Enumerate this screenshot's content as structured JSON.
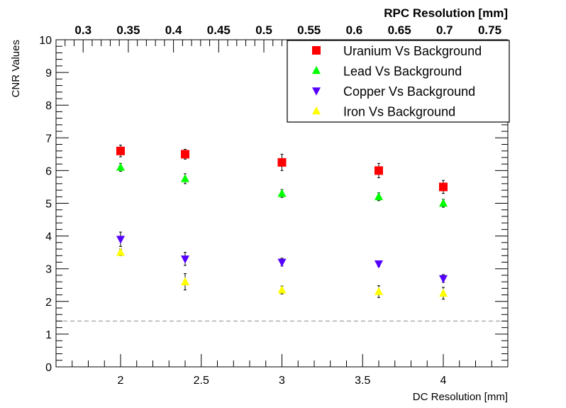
{
  "chart_data": {
    "type": "scatter",
    "title": "",
    "xlabel": "DC Resolution [mm]",
    "ylabel": "CNR Values",
    "top_xlabel": "RPC Resolution [mm]",
    "xlim": [
      1.6,
      4.4
    ],
    "ylim": [
      0,
      10
    ],
    "top_xlim": [
      0.27,
      0.77
    ],
    "x_ticks": [
      "2",
      "2.5",
      "3",
      "3.5",
      "4"
    ],
    "y_ticks": [
      "0",
      "1",
      "2",
      "3",
      "4",
      "5",
      "6",
      "7",
      "8",
      "9",
      "10"
    ],
    "top_x_ticks": [
      "0.3",
      "0.35",
      "0.4",
      "0.45",
      "0.5",
      "0.55",
      "0.6",
      "0.65",
      "0.7",
      "0.75"
    ],
    "threshold_line": 1.4,
    "legend_position": "top-right",
    "grid": false,
    "series": [
      {
        "name": "Uranium Vs Background",
        "marker": "square",
        "color": "#ff0000",
        "points": [
          {
            "x": 2.0,
            "y": 6.6,
            "err": 0.18
          },
          {
            "x": 2.4,
            "y": 6.5,
            "err": 0.15
          },
          {
            "x": 3.0,
            "y": 6.25,
            "err": 0.25
          },
          {
            "x": 3.6,
            "y": 6.0,
            "err": 0.22
          },
          {
            "x": 4.0,
            "y": 5.5,
            "err": 0.2
          }
        ]
      },
      {
        "name": "Lead Vs Background",
        "marker": "triangle-up",
        "color": "#00ff00",
        "points": [
          {
            "x": 2.0,
            "y": 6.1,
            "err": 0.12
          },
          {
            "x": 2.4,
            "y": 5.75,
            "err": 0.15
          },
          {
            "x": 3.0,
            "y": 5.3,
            "err": 0.12
          },
          {
            "x": 3.6,
            "y": 5.2,
            "err": 0.12
          },
          {
            "x": 4.0,
            "y": 5.0,
            "err": 0.12
          }
        ]
      },
      {
        "name": "Copper Vs Background",
        "marker": "triangle-down",
        "color": "#5500ff",
        "points": [
          {
            "x": 2.0,
            "y": 3.9,
            "err": 0.22
          },
          {
            "x": 2.4,
            "y": 3.3,
            "err": 0.2
          },
          {
            "x": 3.0,
            "y": 3.2,
            "err": 0.12
          },
          {
            "x": 3.6,
            "y": 3.15,
            "err": 0.08
          },
          {
            "x": 4.0,
            "y": 2.7,
            "err": 0.12
          }
        ]
      },
      {
        "name": "Iron Vs Background",
        "marker": "triangle-up",
        "color": "#ffff00",
        "points": [
          {
            "x": 2.0,
            "y": 3.5,
            "err": 0.1
          },
          {
            "x": 2.4,
            "y": 2.6,
            "err": 0.25
          },
          {
            "x": 3.0,
            "y": 2.35,
            "err": 0.12
          },
          {
            "x": 3.6,
            "y": 2.3,
            "err": 0.18
          },
          {
            "x": 4.0,
            "y": 2.25,
            "err": 0.18
          }
        ]
      }
    ]
  }
}
